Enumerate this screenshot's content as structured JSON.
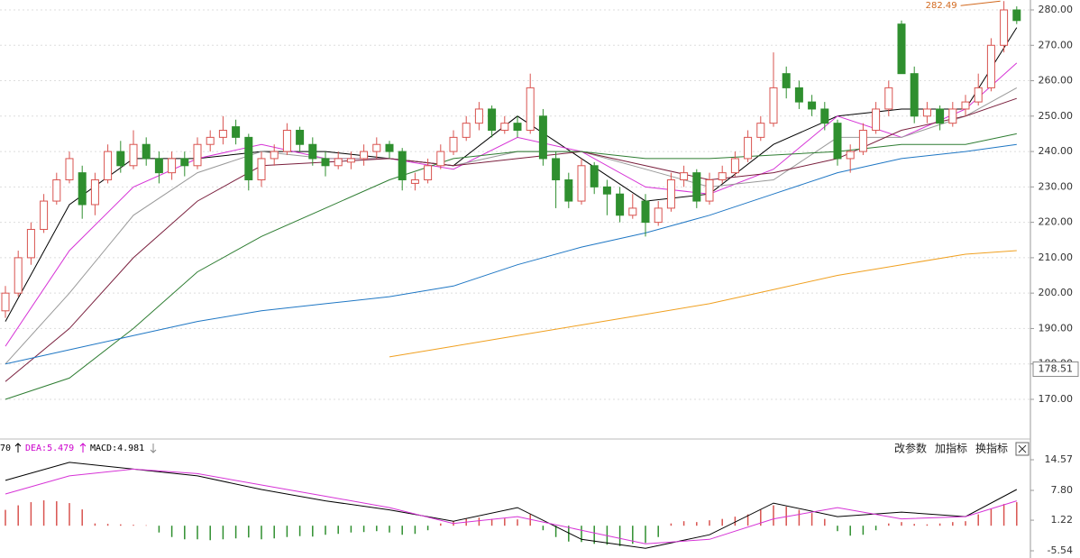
{
  "chart_data": [
    {
      "type": "candlestick",
      "ohlc": [
        [
          195,
          202,
          193,
          200
        ],
        [
          200,
          212,
          199,
          210
        ],
        [
          210,
          220,
          208,
          218
        ],
        [
          218,
          228,
          217,
          226
        ],
        [
          226,
          234,
          225,
          232
        ],
        [
          232,
          240,
          231,
          238
        ],
        [
          234,
          236,
          221,
          225
        ],
        [
          225,
          234,
          222,
          232
        ],
        [
          232,
          242,
          231,
          240
        ],
        [
          240,
          243,
          234,
          236
        ],
        [
          236,
          246,
          235,
          242
        ],
        [
          242,
          244,
          236,
          238
        ],
        [
          238,
          240,
          231,
          234
        ],
        [
          234,
          240,
          232,
          238
        ],
        [
          238,
          240,
          233,
          236
        ],
        [
          236,
          244,
          235,
          242
        ],
        [
          242,
          246,
          240,
          244
        ],
        [
          244,
          250,
          242,
          246
        ],
        [
          247,
          249,
          242,
          244
        ],
        [
          244,
          245,
          229,
          232
        ],
        [
          232,
          240,
          230,
          238
        ],
        [
          238,
          242,
          236,
          240
        ],
        [
          240,
          248,
          239,
          246
        ],
        [
          246,
          247,
          240,
          242
        ],
        [
          242,
          244,
          236,
          238
        ],
        [
          238,
          240,
          233,
          236
        ],
        [
          236,
          240,
          235,
          238
        ],
        [
          237,
          240,
          235,
          238
        ],
        [
          238,
          242,
          236,
          240
        ],
        [
          240,
          244,
          238,
          242
        ],
        [
          242,
          243,
          238,
          240
        ],
        [
          240,
          241,
          229,
          232
        ],
        [
          231,
          234,
          229,
          232
        ],
        [
          232,
          238,
          231,
          236
        ],
        [
          236,
          242,
          235,
          240
        ],
        [
          240,
          246,
          239,
          244
        ],
        [
          244,
          250,
          243,
          248
        ],
        [
          248,
          254,
          246,
          252
        ],
        [
          252,
          253,
          244,
          246
        ],
        [
          246,
          250,
          245,
          248
        ],
        [
          248,
          250,
          244,
          246
        ],
        [
          246,
          262,
          245,
          258
        ],
        [
          250,
          252,
          236,
          238
        ],
        [
          238,
          240,
          224,
          232
        ],
        [
          232,
          234,
          224,
          226
        ],
        [
          226,
          238,
          225,
          236
        ],
        [
          236,
          237,
          228,
          230
        ],
        [
          230,
          232,
          222,
          228
        ],
        [
          228,
          230,
          220,
          222
        ],
        [
          222,
          228,
          221,
          224
        ],
        [
          226,
          228,
          216,
          220
        ],
        [
          220,
          226,
          219,
          224
        ],
        [
          224,
          234,
          223,
          232
        ],
        [
          232,
          236,
          230,
          234
        ],
        [
          234,
          235,
          224,
          226
        ],
        [
          226,
          234,
          225,
          232
        ],
        [
          232,
          236,
          231,
          234
        ],
        [
          234,
          240,
          233,
          238
        ],
        [
          238,
          246,
          237,
          244
        ],
        [
          244,
          250,
          243,
          248
        ],
        [
          248,
          268,
          247,
          258
        ],
        [
          262,
          264,
          255,
          258
        ],
        [
          258,
          260,
          252,
          254
        ],
        [
          254,
          256,
          250,
          252
        ],
        [
          252,
          254,
          246,
          248
        ],
        [
          248,
          249,
          236,
          238
        ],
        [
          238,
          242,
          234,
          240
        ],
        [
          240,
          248,
          239,
          246
        ],
        [
          246,
          254,
          245,
          252
        ],
        [
          252,
          260,
          250,
          258
        ],
        [
          276,
          277,
          262,
          262
        ],
        [
          262,
          264,
          248,
          250
        ],
        [
          250,
          254,
          248,
          252
        ],
        [
          252,
          253,
          246,
          248
        ],
        [
          248,
          254,
          247,
          252
        ],
        [
          252,
          256,
          250,
          254
        ],
        [
          254,
          262,
          253,
          258
        ],
        [
          258,
          272,
          257,
          270
        ],
        [
          270,
          282.49,
          268,
          280
        ],
        [
          280,
          281,
          276,
          277
        ]
      ],
      "up_color": "#d9534f",
      "down_color": "#2f8f2f",
      "ylim": [
        159.3,
        282.8
      ],
      "yticks": [
        {
          "value": 170,
          "label": "170.00"
        },
        {
          "value": 180,
          "label": "180.00"
        },
        {
          "value": 190,
          "label": "190.00"
        },
        {
          "value": 200,
          "label": "200.00"
        },
        {
          "value": 210,
          "label": "210.00"
        },
        {
          "value": 220,
          "label": "220.00"
        },
        {
          "value": 230,
          "label": "230.00"
        },
        {
          "value": 240,
          "label": "240.00"
        },
        {
          "value": 250,
          "label": "250.00"
        },
        {
          "value": 260,
          "label": "260.00"
        },
        {
          "value": 270,
          "label": "270.00"
        },
        {
          "value": 280,
          "label": "280.00"
        }
      ],
      "grid": true,
      "line_x": [
        0,
        5,
        10,
        15,
        20,
        25,
        30,
        35,
        40,
        45,
        50,
        55,
        60,
        65,
        70,
        75,
        79
      ],
      "lines": [
        {
          "color": "#000000",
          "values": [
            192,
            225,
            238,
            238,
            240,
            240,
            238,
            236,
            250,
            238,
            226,
            228,
            242,
            250,
            252,
            252,
            275
          ]
        },
        {
          "color": "#d633d6",
          "values": [
            185,
            212,
            230,
            238,
            242,
            238,
            238,
            235,
            244,
            240,
            230,
            228,
            235,
            250,
            244,
            252,
            265
          ]
        },
        {
          "color": "#999999",
          "values": [
            180,
            200,
            222,
            234,
            240,
            238,
            238,
            236,
            240,
            240,
            235,
            230,
            232,
            244,
            244,
            250,
            258
          ]
        },
        {
          "color": "#7a1f3d",
          "values": [
            175,
            190,
            210,
            226,
            236,
            237,
            238,
            236,
            238,
            240,
            236,
            232,
            234,
            238,
            246,
            250,
            255
          ]
        },
        {
          "color": "#2e7d32",
          "values": [
            170,
            176,
            190,
            206,
            216,
            224,
            232,
            238,
            240,
            240,
            238,
            238,
            239,
            240,
            242,
            242,
            245
          ]
        },
        {
          "color": "#1f77c4",
          "values": [
            180,
            184,
            188,
            192,
            195,
            197,
            199,
            202,
            208,
            213,
            217,
            222,
            228,
            234,
            238,
            240,
            242
          ]
        },
        {
          "color": "#f0a020",
          "values": [
            null,
            null,
            null,
            null,
            null,
            null,
            182,
            185,
            188,
            191,
            194,
            197,
            201,
            205,
            208,
            211,
            212
          ]
        }
      ],
      "crosshair_price": 178.51
    },
    {
      "type": "macd",
      "labels": [
        "70",
        "DEA:5.479",
        "MACD:4.981"
      ],
      "buttons": [
        "改参数",
        "加指标",
        "换指标"
      ],
      "histogram": [
        3.5,
        4.5,
        5.2,
        5.6,
        5.4,
        5.0,
        3.6,
        0.5,
        0.4,
        0.3,
        0.2,
        0.1,
        -1.5,
        -2.5,
        -3,
        -3,
        -3.2,
        -3,
        -2.8,
        -2.6,
        -3,
        -2.8,
        -2.5,
        -2.3,
        -2.4,
        -2,
        -1.8,
        -1.5,
        -1.4,
        -1.2,
        -1.5,
        -2,
        -1.8,
        -1,
        0.5,
        1,
        1.5,
        1.8,
        1.5,
        1.6,
        1.4,
        2.5,
        -1,
        -2.5,
        -3.5,
        -3.6,
        -4,
        -4.2,
        -4.5,
        -4,
        -3.8,
        -2.5,
        0.5,
        1,
        0.8,
        1.2,
        1.5,
        2,
        2.5,
        3.5,
        4.5,
        4.2,
        3.5,
        2.8,
        1.5,
        -1.2,
        -2.2,
        -2,
        -1,
        0.5,
        0.8,
        0.4,
        0.3,
        0.5,
        0.8,
        1,
        2.5,
        3.8,
        4.8,
        5.2
      ],
      "up_color": "#d9534f",
      "down_color": "#2f8f2f",
      "line_x": [
        0,
        5,
        10,
        15,
        20,
        25,
        30,
        35,
        40,
        45,
        50,
        55,
        60,
        65,
        70,
        75,
        79
      ],
      "lines": [
        {
          "color": "#000000",
          "values": [
            10,
            14,
            12.5,
            11,
            8,
            5.5,
            3.5,
            1,
            4,
            -3,
            -5,
            -2,
            5,
            2,
            3,
            2,
            8
          ]
        },
        {
          "color": "#d633d6",
          "values": [
            7,
            11,
            12.5,
            11.5,
            9,
            6.5,
            4,
            0.5,
            2,
            -1,
            -4,
            -3,
            1.5,
            4,
            1.5,
            2,
            5.5
          ]
        }
      ],
      "ylim": [
        -7.13,
        18.55
      ],
      "yticks": [
        -5.54,
        1.22,
        {
          "value": 7.8,
          "label": "7.80"
        },
        14.57
      ]
    }
  ]
}
